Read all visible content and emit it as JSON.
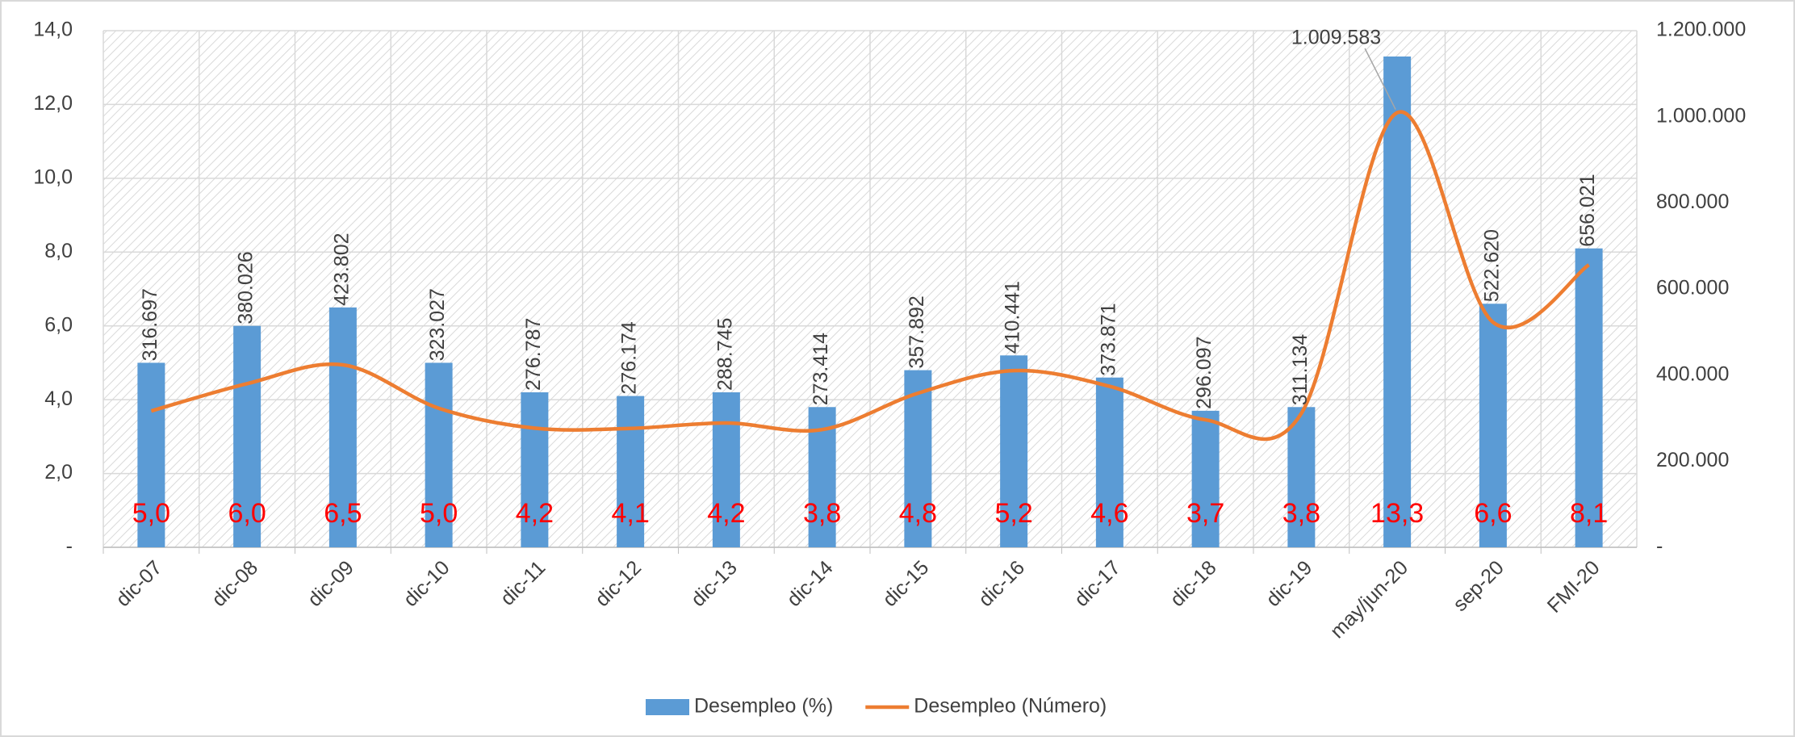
{
  "chart_data": {
    "type": "bar-line",
    "categories": [
      "dic-07",
      "dic-08",
      "dic-09",
      "dic-10",
      "dic-11",
      "dic-12",
      "dic-13",
      "dic-14",
      "dic-15",
      "dic-16",
      "dic-17",
      "dic-18",
      "dic-19",
      "may/jun-20",
      "sep-20",
      "FMI-20"
    ],
    "series": [
      {
        "name": "Desempleo (%)",
        "color": "#5b9bd5",
        "type": "bar",
        "values": [
          5.0,
          6.0,
          6.5,
          5.0,
          4.2,
          4.1,
          4.2,
          3.8,
          4.8,
          5.2,
          4.6,
          3.7,
          3.8,
          13.3,
          6.6,
          8.1
        ],
        "value_labels": [
          "5,0",
          "6,0",
          "6,5",
          "5,0",
          "4,2",
          "4,1",
          "4,2",
          "3,8",
          "4,8",
          "5,2",
          "4,6",
          "3,7",
          "3,8",
          "13,3",
          "6,6",
          "8,1"
        ],
        "label_color": "#ff0000"
      },
      {
        "name": "Desempleo (Número)",
        "color": "#ed7d31",
        "type": "line",
        "axis": "y2",
        "values": [
          316697,
          380026,
          423802,
          323027,
          276787,
          276174,
          288745,
          273414,
          357892,
          410441,
          373871,
          296097,
          311134,
          1009583,
          522620,
          656021
        ],
        "value_labels": [
          "316.697",
          "380.026",
          "423.802",
          "323.027",
          "276.787",
          "276.174",
          "288.745",
          "273.414",
          "357.892",
          "410.441",
          "373.871",
          "296.097",
          "311.134",
          "1.009.583",
          "522.620",
          "656.021"
        ]
      }
    ],
    "ylim": [
      0,
      14
    ],
    "yticks": [
      {
        "value": 0,
        "label": "-"
      },
      {
        "value": 2,
        "label": "2,0"
      },
      {
        "value": 4,
        "label": "4,0"
      },
      {
        "value": 6,
        "label": "6,0"
      },
      {
        "value": 8,
        "label": "8,0"
      },
      {
        "value": 10,
        "label": "10,0"
      },
      {
        "value": 12,
        "label": "12,0"
      },
      {
        "value": 14,
        "label": "14,0"
      }
    ],
    "y2lim": [
      0,
      1200000
    ],
    "y2ticks": [
      {
        "value": 0,
        "label": "-"
      },
      {
        "value": 200000,
        "label": "200.000"
      },
      {
        "value": 400000,
        "label": "400.000"
      },
      {
        "value": 600000,
        "label": "600.000"
      },
      {
        "value": 800000,
        "label": "800.000"
      },
      {
        "value": 1000000,
        "label": "1.000.000"
      },
      {
        "value": 1200000,
        "label": "1.200.000"
      }
    ],
    "grid": true,
    "legend": "bottom"
  }
}
